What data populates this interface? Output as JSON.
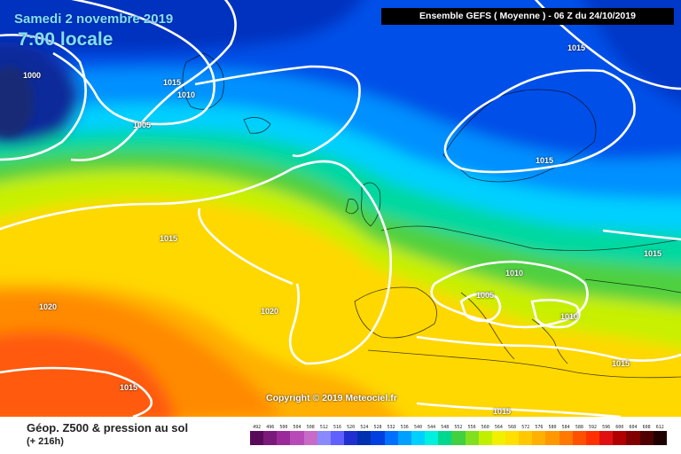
{
  "title": {
    "date": "Samedi 2 novembre 2019",
    "time": "7:00 locale"
  },
  "header": "Ensemble GEFS  ( Moyenne )  -  06 Z du 24/10/2019",
  "copyright": "Copyright © 2019 Meteociel.fr",
  "legend": {
    "title": "Géop. Z500 & pression au sol",
    "subtitle": "(+ 216h)",
    "scale": [
      {
        "value": "492",
        "color": "#5a0a5a"
      },
      {
        "value": "496",
        "color": "#7a1a7a"
      },
      {
        "value": "500",
        "color": "#9a2a9a"
      },
      {
        "value": "504",
        "color": "#b84ab8"
      },
      {
        "value": "508",
        "color": "#c86ac8"
      },
      {
        "value": "512",
        "color": "#8a8aff"
      },
      {
        "value": "516",
        "color": "#6060ff"
      },
      {
        "value": "520",
        "color": "#2030d0"
      },
      {
        "value": "524",
        "color": "#0030b0"
      },
      {
        "value": "528",
        "color": "#0040e0"
      },
      {
        "value": "532",
        "color": "#0070ff"
      },
      {
        "value": "536",
        "color": "#00a0ff"
      },
      {
        "value": "540",
        "color": "#00d0ff"
      },
      {
        "value": "544",
        "color": "#00f0e0"
      },
      {
        "value": "548",
        "color": "#00d890"
      },
      {
        "value": "552",
        "color": "#40d040"
      },
      {
        "value": "556",
        "color": "#80e020"
      },
      {
        "value": "560",
        "color": "#c0f000"
      },
      {
        "value": "564",
        "color": "#f0f000"
      },
      {
        "value": "568",
        "color": "#ffe000"
      },
      {
        "value": "572",
        "color": "#ffc800"
      },
      {
        "value": "576",
        "color": "#ffb000"
      },
      {
        "value": "580",
        "color": "#ff9800"
      },
      {
        "value": "584",
        "color": "#ff7800"
      },
      {
        "value": "588",
        "color": "#ff5000"
      },
      {
        "value": "592",
        "color": "#ff3000"
      },
      {
        "value": "596",
        "color": "#e01010"
      },
      {
        "value": "600",
        "color": "#b00000"
      },
      {
        "value": "604",
        "color": "#800000"
      },
      {
        "value": "608",
        "color": "#500000"
      },
      {
        "value": "612",
        "color": "#200000"
      }
    ]
  },
  "isobar_labels": [
    {
      "text": "1000"
    },
    {
      "text": "1015"
    },
    {
      "text": "1010"
    },
    {
      "text": "1005"
    },
    {
      "text": "1015"
    },
    {
      "text": "1015"
    },
    {
      "text": "1015"
    },
    {
      "text": "1015"
    },
    {
      "text": "1010"
    },
    {
      "text": "1005"
    },
    {
      "text": "1010"
    },
    {
      "text": "1015"
    },
    {
      "text": "1020"
    },
    {
      "text": "1020"
    },
    {
      "text": "1015"
    },
    {
      "text": "1015"
    }
  ]
}
